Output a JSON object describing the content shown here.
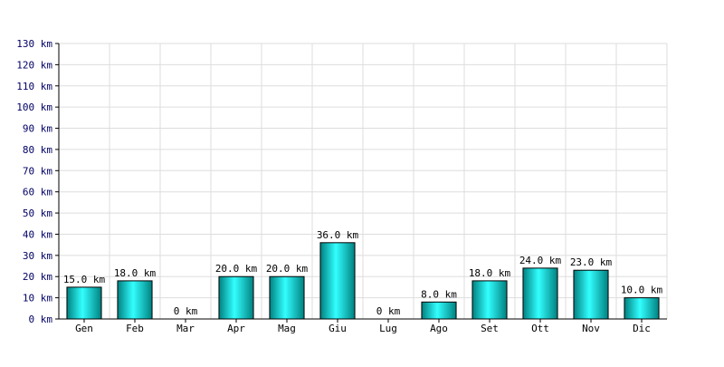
{
  "chart_data": {
    "type": "bar",
    "title": "",
    "xlabel": "",
    "ylabel": "",
    "unit": "km",
    "categories": [
      "Gen",
      "Feb",
      "Mar",
      "Apr",
      "Mag",
      "Giu",
      "Lug",
      "Ago",
      "Set",
      "Ott",
      "Nov",
      "Dic"
    ],
    "values": [
      15,
      18,
      0,
      20,
      20,
      36,
      0,
      8,
      18,
      24,
      23,
      10
    ],
    "data_labels": [
      "15.0 km",
      "18.0 km",
      "0 km",
      "20.0 km",
      "20.0 km",
      "36.0 km",
      "0 km",
      "8.0 km",
      "18.0 km",
      "24.0 km",
      "23.0 km",
      "10.0 km"
    ],
    "ylim": [
      0,
      130
    ],
    "yticks": [
      0,
      10,
      20,
      30,
      40,
      50,
      60,
      70,
      80,
      90,
      100,
      110,
      120,
      130
    ],
    "ytick_labels": [
      "0 km",
      "10 km",
      "20 km",
      "30 km",
      "40 km",
      "50 km",
      "60 km",
      "70 km",
      "80 km",
      "90 km",
      "100 km",
      "110 km",
      "120 km",
      "130 km"
    ],
    "grid": true,
    "legend": "none",
    "colors": {
      "bar_light": "#33ffff",
      "bar_dark": "#008080",
      "bar_stroke": "#000000",
      "grid": "#dddddd",
      "axis": "#000000",
      "tick_text": "#000066"
    }
  }
}
